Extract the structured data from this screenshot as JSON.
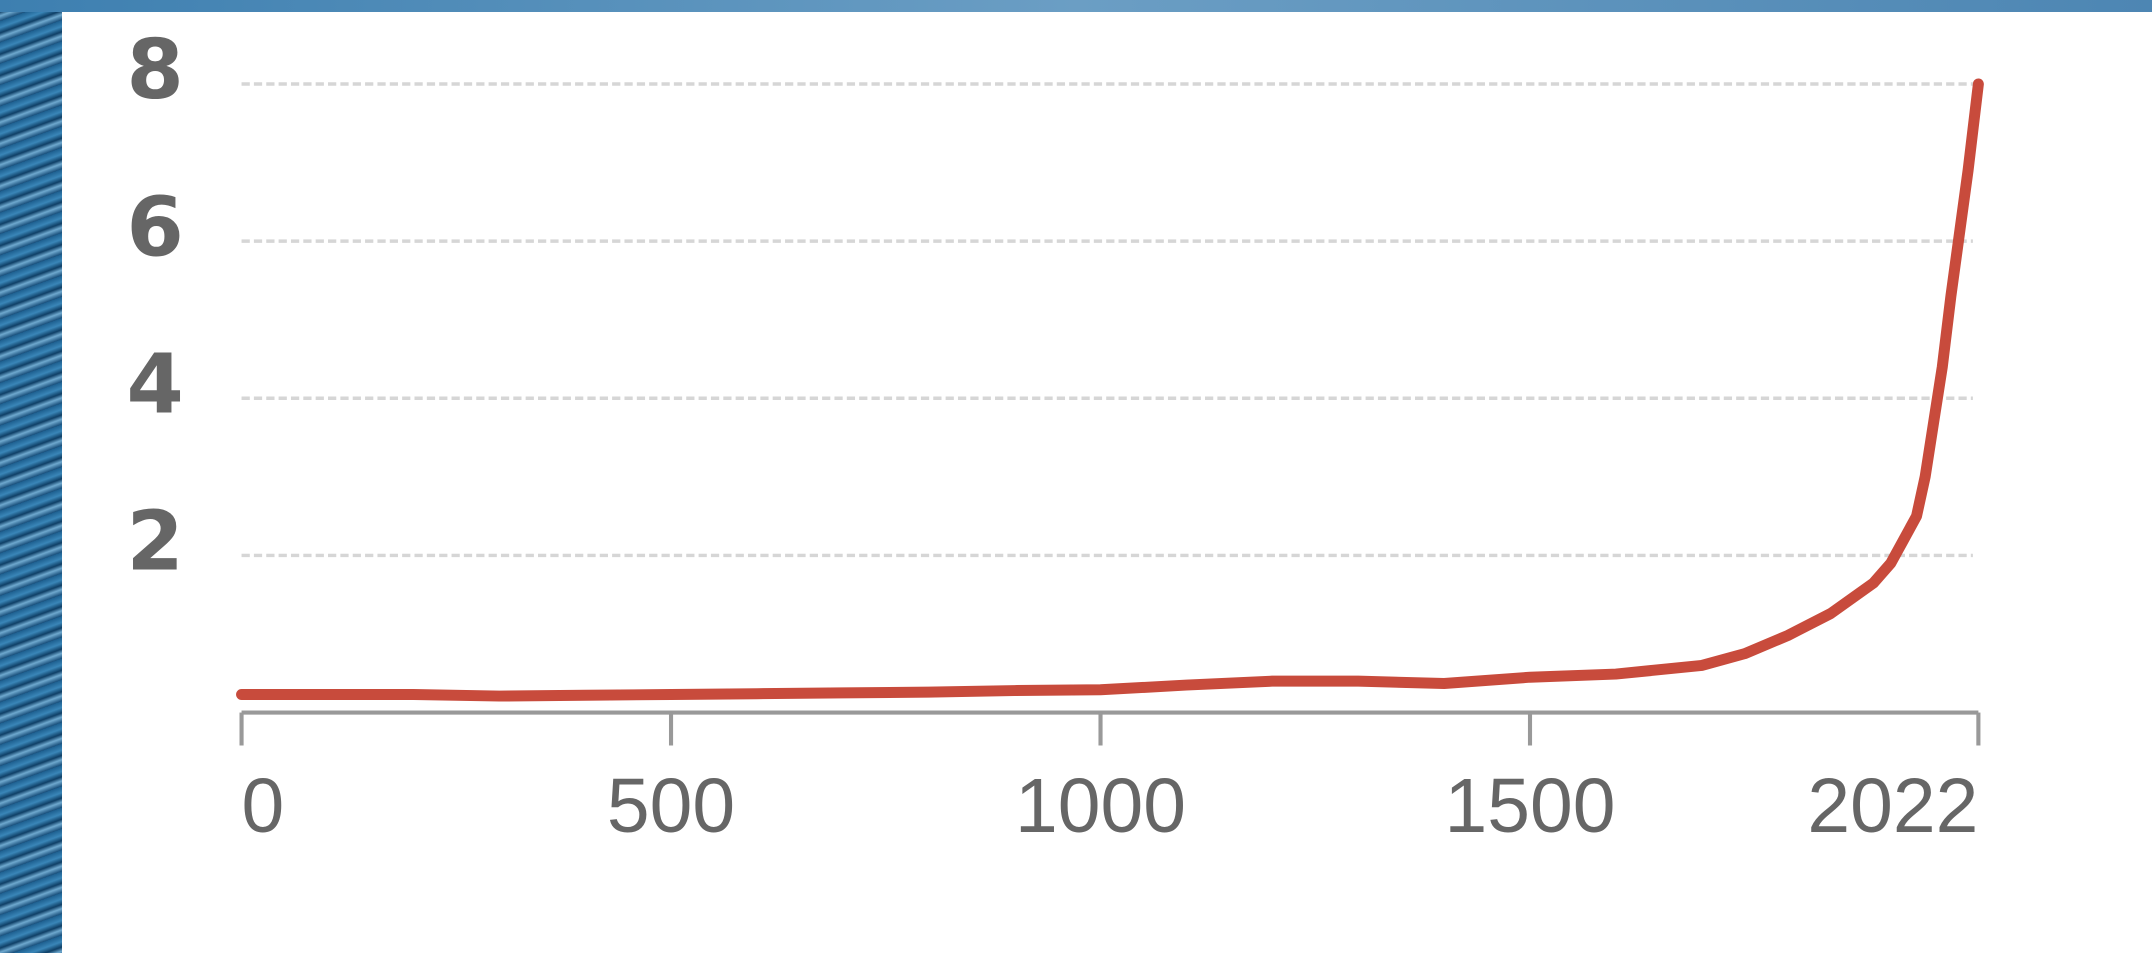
{
  "chart_data": {
    "type": "line",
    "x": [
      0,
      200,
      300,
      400,
      500,
      600,
      700,
      800,
      900,
      1000,
      1100,
      1200,
      1300,
      1400,
      1500,
      1600,
      1700,
      1750,
      1800,
      1850,
      1900,
      1920,
      1950,
      1960,
      1970,
      1980,
      1990,
      2000,
      2010,
      2022
    ],
    "series": [
      {
        "color": "#c84b3c",
        "values": [
          0.23,
          0.23,
          0.21,
          0.22,
          0.23,
          0.24,
          0.25,
          0.26,
          0.28,
          0.29,
          0.35,
          0.4,
          0.4,
          0.37,
          0.45,
          0.49,
          0.6,
          0.75,
          0.98,
          1.26,
          1.65,
          1.9,
          2.5,
          3.0,
          3.7,
          4.4,
          5.3,
          6.1,
          6.9,
          8.0
        ]
      }
    ],
    "xlim": [
      0,
      2022
    ],
    "xticks": [
      0,
      500,
      1000,
      1500,
      2022
    ],
    "ylim": [
      0,
      8
    ],
    "yticks": [
      2,
      4,
      6,
      8
    ],
    "grid": true
  }
}
